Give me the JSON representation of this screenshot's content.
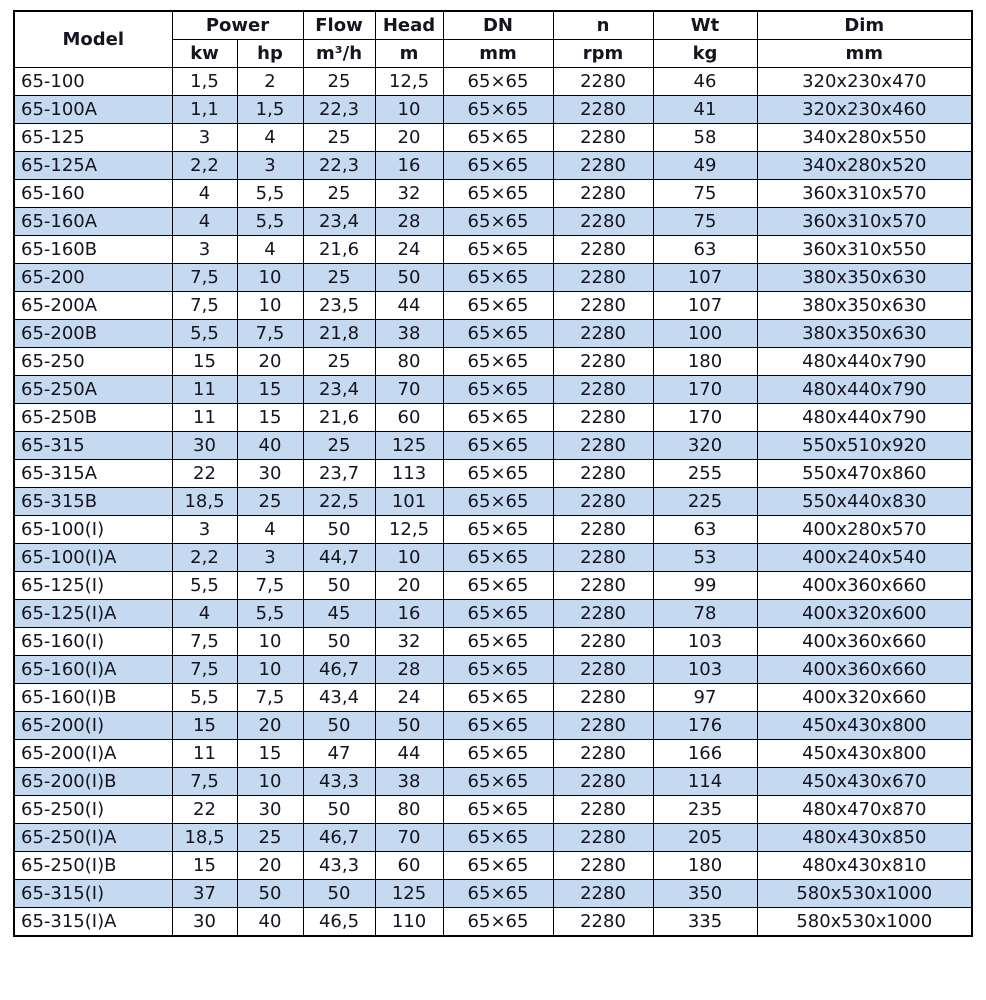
{
  "table": {
    "header": {
      "model": "Model",
      "power": "Power",
      "flow": "Flow",
      "head": "Head",
      "dn": "DN",
      "n": "n",
      "wt": "Wt",
      "dim": "Dim",
      "units": {
        "kw": "kw",
        "hp": "hp",
        "flow": "m³/h",
        "head": "m",
        "dn": "mm",
        "n": "rpm",
        "wt": "kg",
        "dim": "mm"
      }
    },
    "columns": [
      "model",
      "kw",
      "hp",
      "flow",
      "head",
      "dn",
      "rpm",
      "wt",
      "dim"
    ],
    "rows": [
      [
        "65-100",
        "1,5",
        "2",
        "25",
        "12,5",
        "65×65",
        "2280",
        "46",
        "320x230x470"
      ],
      [
        "65-100A",
        "1,1",
        "1,5",
        "22,3",
        "10",
        "65×65",
        "2280",
        "41",
        "320x230x460"
      ],
      [
        "65-125",
        "3",
        "4",
        "25",
        "20",
        "65×65",
        "2280",
        "58",
        "340x280x550"
      ],
      [
        "65-125A",
        "2,2",
        "3",
        "22,3",
        "16",
        "65×65",
        "2280",
        "49",
        "340x280x520"
      ],
      [
        "65-160",
        "4",
        "5,5",
        "25",
        "32",
        "65×65",
        "2280",
        "75",
        "360x310x570"
      ],
      [
        "65-160A",
        "4",
        "5,5",
        "23,4",
        "28",
        "65×65",
        "2280",
        "75",
        "360x310x570"
      ],
      [
        "65-160B",
        "3",
        "4",
        "21,6",
        "24",
        "65×65",
        "2280",
        "63",
        "360x310x550"
      ],
      [
        "65-200",
        "7,5",
        "10",
        "25",
        "50",
        "65×65",
        "2280",
        "107",
        "380x350x630"
      ],
      [
        "65-200A",
        "7,5",
        "10",
        "23,5",
        "44",
        "65×65",
        "2280",
        "107",
        "380x350x630"
      ],
      [
        "65-200B",
        "5,5",
        "7,5",
        "21,8",
        "38",
        "65×65",
        "2280",
        "100",
        "380x350x630"
      ],
      [
        "65-250",
        "15",
        "20",
        "25",
        "80",
        "65×65",
        "2280",
        "180",
        "480x440x790"
      ],
      [
        "65-250A",
        "11",
        "15",
        "23,4",
        "70",
        "65×65",
        "2280",
        "170",
        "480x440x790"
      ],
      [
        "65-250B",
        "11",
        "15",
        "21,6",
        "60",
        "65×65",
        "2280",
        "170",
        "480x440x790"
      ],
      [
        "65-315",
        "30",
        "40",
        "25",
        "125",
        "65×65",
        "2280",
        "320",
        "550x510x920"
      ],
      [
        "65-315A",
        "22",
        "30",
        "23,7",
        "113",
        "65×65",
        "2280",
        "255",
        "550x470x860"
      ],
      [
        "65-315B",
        "18,5",
        "25",
        "22,5",
        "101",
        "65×65",
        "2280",
        "225",
        "550x440x830"
      ],
      [
        "65-100(I)",
        "3",
        "4",
        "50",
        "12,5",
        "65×65",
        "2280",
        "63",
        "400x280x570"
      ],
      [
        "65-100(I)A",
        "2,2",
        "3",
        "44,7",
        "10",
        "65×65",
        "2280",
        "53",
        "400x240x540"
      ],
      [
        "65-125(I)",
        "5,5",
        "7,5",
        "50",
        "20",
        "65×65",
        "2280",
        "99",
        "400x360x660"
      ],
      [
        "65-125(I)A",
        "4",
        "5,5",
        "45",
        "16",
        "65×65",
        "2280",
        "78",
        "400x320x600"
      ],
      [
        "65-160(I)",
        "7,5",
        "10",
        "50",
        "32",
        "65×65",
        "2280",
        "103",
        "400x360x660"
      ],
      [
        "65-160(I)A",
        "7,5",
        "10",
        "46,7",
        "28",
        "65×65",
        "2280",
        "103",
        "400x360x660"
      ],
      [
        "65-160(I)B",
        "5,5",
        "7,5",
        "43,4",
        "24",
        "65×65",
        "2280",
        "97",
        "400x320x660"
      ],
      [
        "65-200(I)",
        "15",
        "20",
        "50",
        "50",
        "65×65",
        "2280",
        "176",
        "450x430x800"
      ],
      [
        "65-200(I)A",
        "11",
        "15",
        "47",
        "44",
        "65×65",
        "2280",
        "166",
        "450x430x800"
      ],
      [
        "65-200(I)B",
        "7,5",
        "10",
        "43,3",
        "38",
        "65×65",
        "2280",
        "114",
        "450x430x670"
      ],
      [
        "65-250(I)",
        "22",
        "30",
        "50",
        "80",
        "65×65",
        "2280",
        "235",
        "480x470x870"
      ],
      [
        "65-250(I)A",
        "18,5",
        "25",
        "46,7",
        "70",
        "65×65",
        "2280",
        "205",
        "480x430x850"
      ],
      [
        "65-250(I)B",
        "15",
        "20",
        "43,3",
        "60",
        "65×65",
        "2280",
        "180",
        "480x430x810"
      ],
      [
        "65-315(I)",
        "37",
        "50",
        "50",
        "125",
        "65×65",
        "2280",
        "350",
        "580x530x1000"
      ],
      [
        "65-315(I)A",
        "30",
        "40",
        "46,5",
        "110",
        "65×65",
        "2280",
        "335",
        "580x530x1000"
      ]
    ],
    "colors": {
      "row_alt": "#c5d9f1",
      "row_base": "#ffffff",
      "border": "#000000",
      "text": "#151521"
    }
  }
}
